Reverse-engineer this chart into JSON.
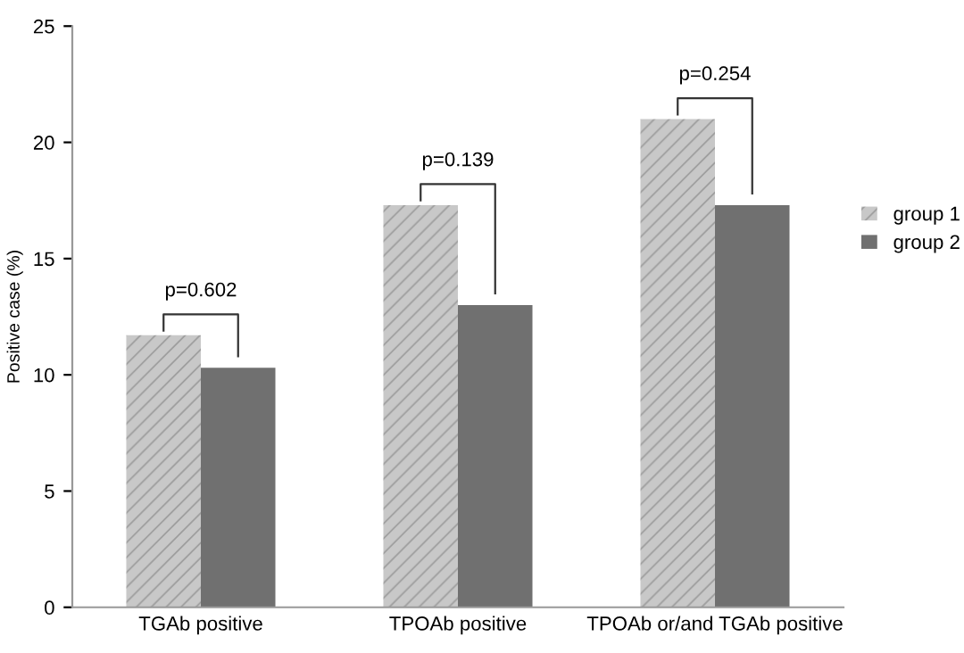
{
  "chart_data": {
    "type": "bar",
    "ylabel": "Positive case (%)",
    "categories": [
      "TGAb positive",
      "TPOAb positive",
      "TPOAb or/and TGAb positive"
    ],
    "series": [
      {
        "name": "group 1",
        "color": "#c8c8c8",
        "values": [
          11.7,
          17.3,
          21.0
        ]
      },
      {
        "name": "group 2",
        "color": "#707070",
        "values": [
          10.3,
          13.0,
          17.3
        ]
      }
    ],
    "ylim": [
      0,
      25
    ],
    "yticks": [
      0,
      5,
      10,
      15,
      20,
      25
    ],
    "grid": false,
    "legend": "right",
    "annotations": [
      "p=0.602",
      "p=0.139",
      "p=0.254"
    ]
  }
}
